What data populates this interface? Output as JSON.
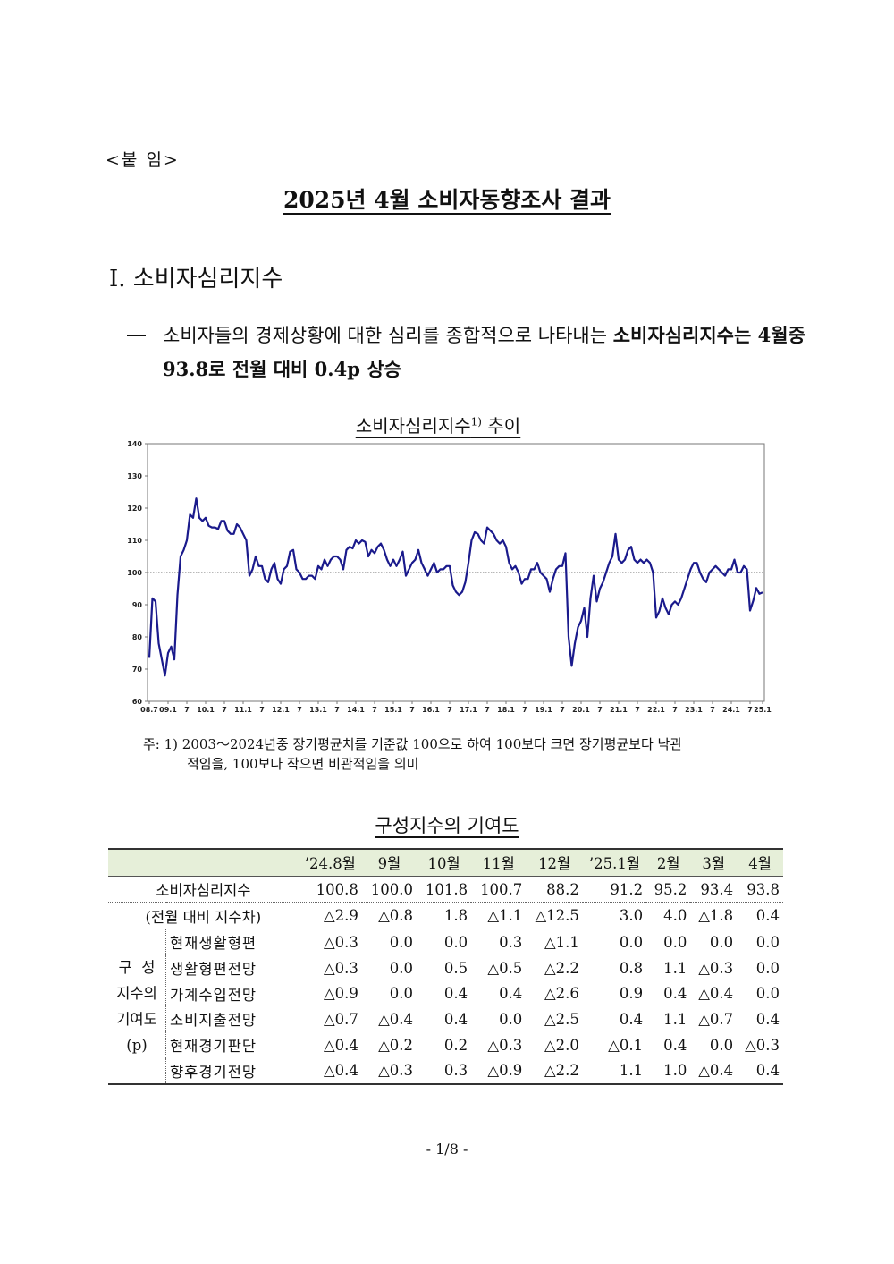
{
  "attachment_label": "<붙 임>",
  "title": "2025년 4월 소비자동향조사 결과",
  "section_heading": "Ⅰ. 소비자심리지수",
  "bullet": {
    "dash": "―",
    "text_normal": "소비자들의 경제상황에 대한 심리를 종합적으로 나타내는 ",
    "text_bold": "소비자심리지수는 4월중 93.8로 전월 대비 0.4p 상승"
  },
  "chart_title": "소비자심리지수",
  "chart_title_note": "1)",
  "chart_title_suffix": " 추이",
  "chart_data": {
    "type": "line",
    "title": "소비자심리지수1) 추이",
    "ylim": [
      60,
      140
    ],
    "yticks": [
      "60",
      "70",
      "80",
      "90",
      "100",
      "110",
      "120",
      "130",
      "140"
    ],
    "xtick_labels": [
      "08.7",
      "09.1",
      "7",
      "10.1",
      "7",
      "11.1",
      "7",
      "12.1",
      "7",
      "13.1",
      "7",
      "14.1",
      "7",
      "15.1",
      "7",
      "16.1",
      "7",
      "17.1",
      "7",
      "18.1",
      "7",
      "19.1",
      "7",
      "20.1",
      "7",
      "21.1",
      "7",
      "22.1",
      "7",
      "23.1",
      "7",
      "24.1",
      "7",
      "25.1"
    ],
    "reference_line": 100,
    "line_color": "#1a1a8c",
    "series": [
      {
        "start": "2008.7",
        "frequency": "monthly",
        "values": [
          73.5,
          92,
          91,
          78,
          73,
          68,
          75,
          77,
          73,
          93,
          105,
          107,
          110,
          118,
          117,
          123,
          117,
          116,
          117,
          114.5,
          114,
          114,
          113.5,
          116,
          116,
          113,
          112,
          112,
          115,
          114,
          112,
          110,
          99,
          101,
          105,
          102,
          102,
          98,
          97,
          101,
          103,
          98,
          96.5,
          101,
          102,
          106.5,
          107,
          101,
          100,
          98,
          98,
          99,
          99,
          98,
          102,
          101,
          104,
          102,
          104,
          105,
          105,
          104,
          101,
          107,
          108,
          107.5,
          110,
          109,
          110,
          109.5,
          105,
          107,
          106,
          108,
          109,
          107,
          104,
          102,
          104,
          102,
          104,
          106.5,
          99,
          101,
          103,
          104,
          107,
          103,
          101,
          99,
          101,
          103,
          100,
          101,
          101,
          102,
          102,
          96,
          94,
          93,
          94,
          97,
          103,
          110,
          112.5,
          112,
          110,
          109,
          114,
          113,
          112,
          110,
          109,
          110,
          108,
          103,
          101,
          102,
          100,
          96.5,
          98,
          98,
          101,
          101,
          103,
          100,
          99,
          98,
          94,
          98,
          101,
          102,
          102,
          106,
          80,
          71,
          78,
          83,
          85,
          89,
          80,
          92,
          99,
          91,
          95,
          97,
          100,
          103,
          105,
          112,
          104,
          103,
          104,
          107,
          108,
          104,
          103,
          104,
          103,
          104,
          103,
          100,
          86,
          88,
          92,
          89,
          87,
          90,
          91,
          90,
          92,
          95,
          98,
          101,
          103,
          103,
          100,
          98,
          97,
          100,
          101,
          102,
          101,
          100,
          99,
          101,
          101,
          104,
          100,
          100,
          102,
          101,
          88.2,
          91.2,
          95.2,
          93.4,
          93.8
        ]
      }
    ]
  },
  "chart_note": {
    "line1": "주: 1) 2003～2024년중 장기평균치를 기준값 100으로 하여 100보다 크면 장기평균보다 낙관",
    "line2": "적임을, 100보다 작으면 비관적임을 의미"
  },
  "table_title": "구성지수의 기여도",
  "table": {
    "headers": [
      "’24.8월",
      "9월",
      "10월",
      "11월",
      "12월",
      "’25.1월",
      "2월",
      "3월",
      "4월"
    ],
    "csi_row": {
      "label": "소비자심리지수",
      "values": [
        "100.8",
        "100.0",
        "101.8",
        "100.7",
        "88.2",
        "91.2",
        "95.2",
        "93.4",
        "93.8"
      ]
    },
    "diff_row": {
      "label": "(전월 대비 지수차)",
      "values": [
        "△2.9",
        "△0.8",
        "1.8",
        "△1.1",
        "△12.5",
        "3.0",
        "4.0",
        "△1.8",
        "0.4"
      ]
    },
    "group_label_lines": [
      "구  성",
      "지수의",
      "기여도",
      "(p)"
    ],
    "components": [
      {
        "label": "현재생활형편",
        "values": [
          "△0.3",
          "0.0",
          "0.0",
          "0.3",
          "△1.1",
          "0.0",
          "0.0",
          "0.0",
          "0.0"
        ]
      },
      {
        "label": "생활형편전망",
        "values": [
          "△0.3",
          "0.0",
          "0.5",
          "△0.5",
          "△2.2",
          "0.8",
          "1.1",
          "△0.3",
          "0.0"
        ]
      },
      {
        "label": "가계수입전망",
        "values": [
          "△0.9",
          "0.0",
          "0.4",
          "0.4",
          "△2.6",
          "0.9",
          "0.4",
          "△0.4",
          "0.0"
        ]
      },
      {
        "label": "소비지출전망",
        "values": [
          "△0.7",
          "△0.4",
          "0.4",
          "0.0",
          "△2.5",
          "0.4",
          "1.1",
          "△0.7",
          "0.4"
        ]
      },
      {
        "label": "현재경기판단",
        "values": [
          "△0.4",
          "△0.2",
          "0.2",
          "△0.3",
          "△2.0",
          "△0.1",
          "0.4",
          "0.0",
          "△0.3"
        ]
      },
      {
        "label": "향후경기전망",
        "values": [
          "△0.4",
          "△0.3",
          "0.3",
          "△0.9",
          "△2.2",
          "1.1",
          "1.0",
          "△0.4",
          "0.4"
        ]
      }
    ]
  },
  "page_number": "- 1/8 -"
}
